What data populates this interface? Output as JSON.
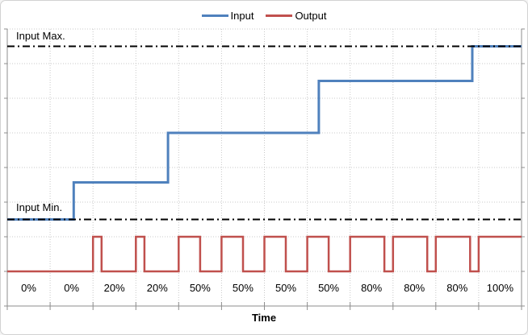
{
  "chart_data": {
    "type": "line",
    "title": "",
    "xlabel": "Time",
    "ylabel": "",
    "legend_position": "top",
    "grid": true,
    "categories": [
      "0%",
      "0%",
      "20%",
      "20%",
      "50%",
      "50%",
      "50%",
      "50%",
      "80%",
      "80%",
      "80%",
      "100%"
    ],
    "axis": {
      "x_slots": 12,
      "y_units": 8,
      "y_gridline_step": 1
    },
    "series": [
      {
        "name": "Input",
        "color": "#4F81BD",
        "shape": "step",
        "levels": [
          2.5,
          3.57,
          5.0,
          6.5,
          7.5
        ],
        "step_times": [
          1.55,
          3.75,
          7.27,
          10.85
        ]
      },
      {
        "name": "Output",
        "color": "#C0504D",
        "shape": "pwm",
        "low_level": 1.0,
        "high_level": 2.0,
        "duty_cycles_pct": [
          0,
          0,
          20,
          20,
          50,
          50,
          50,
          50,
          80,
          80,
          80,
          100
        ]
      }
    ],
    "reference_lines": [
      {
        "label": "Input Max.",
        "value": 7.5,
        "color": "#000000",
        "style": "dash-dot"
      },
      {
        "label": "Input Min.",
        "value": 2.5,
        "color": "#000000",
        "style": "dash-dot"
      }
    ]
  }
}
